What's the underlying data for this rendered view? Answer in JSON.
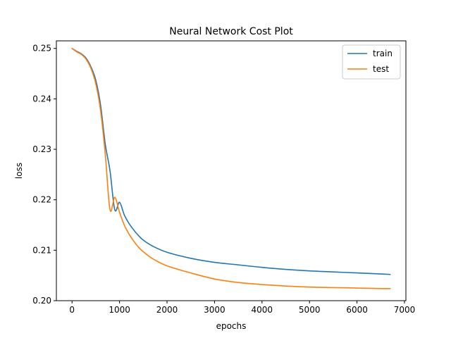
{
  "chart_data": {
    "type": "line",
    "title": "Neural Network Cost Plot",
    "xlabel": "epochs",
    "ylabel": "loss",
    "xlim": [
      -330,
      7030
    ],
    "ylim": [
      0.2,
      0.2515
    ],
    "xticks": [
      0,
      1000,
      2000,
      3000,
      4000,
      5000,
      6000,
      7000
    ],
    "yticks": [
      0.2,
      0.21,
      0.22,
      0.23,
      0.24,
      0.25
    ],
    "xtick_labels": [
      "0",
      "1000",
      "2000",
      "3000",
      "4000",
      "5000",
      "6000",
      "7000"
    ],
    "ytick_labels": [
      "0.20",
      "0.21",
      "0.22",
      "0.23",
      "0.24",
      "0.25"
    ],
    "grid": false,
    "legend_position": "top-right",
    "series": [
      {
        "name": "train",
        "color": "#1f77b4",
        "x": [
          0,
          100,
          200,
          300,
          400,
          500,
          600,
          700,
          800,
          900,
          1000,
          1100,
          1200,
          1300,
          1400,
          1500,
          1700,
          2000,
          2500,
          3000,
          3500,
          4000,
          4500,
          5000,
          5500,
          6000,
          6500,
          6700
        ],
        "y": [
          0.25,
          0.2494,
          0.2489,
          0.248,
          0.2463,
          0.2437,
          0.2388,
          0.231,
          0.2257,
          0.218,
          0.2195,
          0.217,
          0.2153,
          0.214,
          0.2129,
          0.212,
          0.2108,
          0.2096,
          0.2084,
          0.2076,
          0.2071,
          0.2066,
          0.2062,
          0.2059,
          0.2057,
          0.2055,
          0.2053,
          0.2052
        ]
      },
      {
        "name": "test",
        "color": "#ff7f0e",
        "x": [
          0,
          100,
          200,
          300,
          400,
          500,
          600,
          700,
          800,
          900,
          1000,
          1100,
          1200,
          1300,
          1400,
          1500,
          1700,
          2000,
          2500,
          3000,
          3500,
          4000,
          4500,
          5000,
          5500,
          6000,
          6500,
          6700
        ],
        "y": [
          0.25,
          0.2493,
          0.2488,
          0.2478,
          0.246,
          0.243,
          0.2377,
          0.229,
          0.218,
          0.2205,
          0.2175,
          0.215,
          0.2132,
          0.2118,
          0.2106,
          0.2097,
          0.2083,
          0.2069,
          0.2055,
          0.2043,
          0.2036,
          0.2032,
          0.2029,
          0.2027,
          0.2026,
          0.2025,
          0.2024,
          0.2024
        ]
      }
    ]
  }
}
